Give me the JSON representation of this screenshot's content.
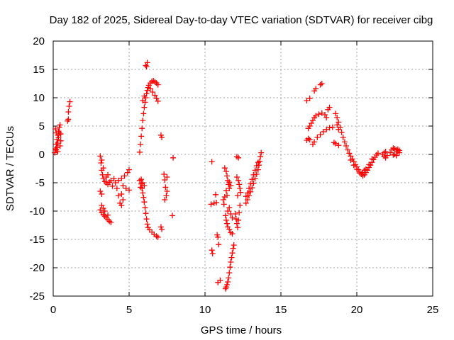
{
  "chart_data": {
    "type": "scatter",
    "title": "Day 182 of 2025, Sidereal Day-to-day VTEC variation (SDTVAR) for receiver cibg",
    "xlabel": "GPS time / hours",
    "ylabel": "SDTVAR / TECUs",
    "xlim": [
      0,
      25
    ],
    "ylim": [
      -25,
      20
    ],
    "xticks": [
      0,
      5,
      10,
      15,
      20,
      25
    ],
    "yticks": [
      20,
      15,
      10,
      5,
      0,
      -5,
      -10,
      -15,
      -20,
      -25
    ],
    "grid": true,
    "marker": "+",
    "marker_color": "#ff0000",
    "series": [
      {
        "name": "SDTVAR",
        "points": [
          [
            0.1,
            0.3
          ],
          [
            0.15,
            1.0
          ],
          [
            0.2,
            1.8
          ],
          [
            0.25,
            2.6
          ],
          [
            0.3,
            3.4
          ],
          [
            0.35,
            4.1
          ],
          [
            0.4,
            4.8
          ],
          [
            0.45,
            5.2
          ],
          [
            0.2,
            0.8
          ],
          [
            0.3,
            2.0
          ],
          [
            0.35,
            3.0
          ],
          [
            0.4,
            3.8
          ],
          [
            0.25,
            1.2
          ],
          [
            0.3,
            0.5
          ],
          [
            0.45,
            1.5
          ],
          [
            0.5,
            2.4
          ],
          [
            0.5,
            3.6
          ],
          [
            0.15,
            4.5
          ],
          [
            0.2,
            3.8
          ],
          [
            0.95,
            5.9
          ],
          [
            1.0,
            7.5
          ],
          [
            1.05,
            8.5
          ],
          [
            1.1,
            9.3
          ],
          [
            1.0,
            6.2
          ],
          [
            3.1,
            -0.3
          ],
          [
            3.15,
            -1.5
          ],
          [
            3.2,
            -2.8
          ],
          [
            3.25,
            -3.6
          ],
          [
            3.3,
            -4.3
          ],
          [
            3.4,
            -4.8
          ],
          [
            3.5,
            -5.0
          ],
          [
            3.6,
            -5.3
          ],
          [
            3.7,
            -4.9
          ],
          [
            3.8,
            -4.6
          ],
          [
            3.5,
            -4.0
          ],
          [
            3.6,
            -3.6
          ],
          [
            3.3,
            -2.4
          ],
          [
            3.2,
            -1.0
          ],
          [
            3.1,
            -6.5
          ],
          [
            3.2,
            -7.0
          ],
          [
            3.1,
            -9.8
          ],
          [
            3.2,
            -10.3
          ],
          [
            3.3,
            -10.6
          ],
          [
            3.4,
            -10.9
          ],
          [
            3.5,
            -11.2
          ],
          [
            3.6,
            -11.5
          ],
          [
            3.7,
            -11.8
          ],
          [
            3.8,
            -12.0
          ],
          [
            3.3,
            -9.5
          ],
          [
            3.4,
            -10.0
          ],
          [
            3.2,
            -9.0
          ],
          [
            3.6,
            -10.7
          ],
          [
            4.1,
            -5.0
          ],
          [
            4.3,
            -4.6
          ],
          [
            4.5,
            -4.2
          ],
          [
            4.7,
            -3.8
          ],
          [
            4.9,
            -3.2
          ],
          [
            5.0,
            -2.7
          ],
          [
            4.6,
            -5.5
          ],
          [
            4.8,
            -6.0
          ],
          [
            5.0,
            -6.3
          ],
          [
            4.5,
            -7.0
          ],
          [
            4.3,
            -7.3
          ],
          [
            4.6,
            -8.0
          ],
          [
            4.4,
            -8.6
          ],
          [
            4.0,
            -4.3
          ],
          [
            3.9,
            -5.6
          ],
          [
            4.2,
            -6.0
          ],
          [
            4.5,
            -9.0
          ],
          [
            5.7,
            -4.6
          ],
          [
            5.8,
            -5.2
          ],
          [
            5.85,
            -6.0
          ],
          [
            5.9,
            -6.8
          ],
          [
            5.95,
            -7.6
          ],
          [
            6.0,
            -8.4
          ],
          [
            6.05,
            -9.4
          ],
          [
            6.1,
            -10.4
          ],
          [
            6.15,
            -11.4
          ],
          [
            6.2,
            -12.3
          ],
          [
            6.25,
            -12.9
          ],
          [
            6.35,
            -13.3
          ],
          [
            6.5,
            -13.7
          ],
          [
            6.65,
            -14.1
          ],
          [
            6.8,
            -14.4
          ],
          [
            6.9,
            -14.6
          ],
          [
            5.8,
            -4.4
          ],
          [
            5.9,
            -5.0
          ],
          [
            6.0,
            -5.5
          ],
          [
            5.75,
            -5.8
          ],
          [
            5.7,
            0.4
          ],
          [
            5.75,
            1.8
          ],
          [
            5.8,
            3.2
          ],
          [
            5.85,
            4.6
          ],
          [
            5.9,
            6.0
          ],
          [
            5.95,
            7.2
          ],
          [
            6.0,
            8.3
          ],
          [
            6.05,
            9.2
          ],
          [
            6.1,
            10.0
          ],
          [
            6.15,
            10.7
          ],
          [
            6.2,
            11.3
          ],
          [
            6.25,
            11.8
          ],
          [
            6.3,
            12.2
          ],
          [
            6.4,
            12.6
          ],
          [
            6.5,
            12.9
          ],
          [
            6.6,
            13.0
          ],
          [
            6.7,
            12.8
          ],
          [
            6.8,
            12.6
          ],
          [
            6.9,
            12.3
          ],
          [
            6.4,
            11.6
          ],
          [
            6.55,
            11.0
          ],
          [
            6.7,
            10.4
          ],
          [
            6.8,
            9.9
          ],
          [
            6.9,
            9.4
          ],
          [
            5.9,
            9.5
          ],
          [
            6.0,
            10.3
          ],
          [
            6.1,
            15.7
          ],
          [
            6.2,
            16.2
          ],
          [
            6.15,
            15.5
          ],
          [
            7.1,
            3.4
          ],
          [
            7.15,
            3.0
          ],
          [
            7.3,
            -3.5
          ],
          [
            7.35,
            -4.5
          ],
          [
            7.4,
            -5.8
          ],
          [
            7.5,
            -6.5
          ],
          [
            7.45,
            -7.3
          ],
          [
            7.35,
            -8.0
          ],
          [
            7.5,
            -4.0
          ],
          [
            7.1,
            -12.8
          ],
          [
            7.15,
            -13.2
          ],
          [
            7.9,
            -0.6
          ],
          [
            7.85,
            -10.8
          ],
          [
            10.45,
            -1.3
          ],
          [
            10.4,
            -8.8
          ],
          [
            10.45,
            -16.9
          ],
          [
            10.5,
            -17.5
          ],
          [
            10.6,
            -8.6
          ],
          [
            10.7,
            -7.1
          ],
          [
            10.75,
            -8.5
          ],
          [
            10.8,
            -14.2
          ],
          [
            10.85,
            -14.6
          ],
          [
            10.9,
            -15.9
          ],
          [
            10.85,
            -22.6
          ],
          [
            11.0,
            -22.2
          ],
          [
            11.3,
            -2.4
          ],
          [
            11.4,
            -3.0
          ],
          [
            11.45,
            -3.8
          ],
          [
            11.5,
            -4.6
          ],
          [
            11.55,
            -5.3
          ],
          [
            11.6,
            -6.0
          ],
          [
            11.4,
            -6.4
          ],
          [
            11.45,
            -7.2
          ],
          [
            11.3,
            -7.5
          ],
          [
            11.2,
            -8.0
          ],
          [
            11.25,
            -8.8
          ],
          [
            11.6,
            -4.9
          ],
          [
            11.7,
            -5.5
          ],
          [
            11.35,
            -10.8
          ],
          [
            11.4,
            -11.6
          ],
          [
            11.45,
            -12.2
          ],
          [
            11.5,
            -12.8
          ],
          [
            11.6,
            -13.2
          ],
          [
            11.7,
            -13.8
          ],
          [
            11.8,
            -14.0
          ],
          [
            11.5,
            -10.0
          ],
          [
            11.6,
            -9.4
          ],
          [
            11.7,
            -10.5
          ],
          [
            11.8,
            -11.2
          ],
          [
            11.35,
            -23.7
          ],
          [
            11.4,
            -23.4
          ],
          [
            11.45,
            -23.0
          ],
          [
            11.5,
            -22.5
          ],
          [
            11.55,
            -21.8
          ],
          [
            11.6,
            -20.9
          ],
          [
            11.65,
            -19.9
          ],
          [
            11.7,
            -19.0
          ],
          [
            11.75,
            -18.2
          ],
          [
            11.8,
            -17.4
          ],
          [
            11.85,
            -16.6
          ],
          [
            11.9,
            -16.0
          ],
          [
            12.0,
            -10.5
          ],
          [
            12.05,
            -11.4
          ],
          [
            12.1,
            -12.2
          ],
          [
            12.15,
            -12.9
          ],
          [
            12.2,
            -11.6
          ],
          [
            12.25,
            -10.3
          ],
          [
            12.3,
            -9.0
          ],
          [
            12.1,
            -0.4
          ],
          [
            12.2,
            -0.6
          ],
          [
            12.1,
            -4.0
          ],
          [
            12.2,
            -4.6
          ],
          [
            12.25,
            -5.3
          ],
          [
            12.3,
            -6.0
          ],
          [
            12.35,
            -6.7
          ],
          [
            12.15,
            -7.3
          ],
          [
            12.7,
            -8.6
          ],
          [
            12.8,
            -8.0
          ],
          [
            12.9,
            -7.3
          ],
          [
            13.0,
            -6.6
          ],
          [
            13.1,
            -5.9
          ],
          [
            13.2,
            -5.1
          ],
          [
            13.3,
            -4.3
          ],
          [
            13.4,
            -3.5
          ],
          [
            13.5,
            -2.7
          ],
          [
            13.55,
            -1.9
          ],
          [
            13.6,
            -1.2
          ],
          [
            13.65,
            -0.4
          ],
          [
            13.7,
            0.3
          ],
          [
            12.8,
            -6.8
          ],
          [
            12.9,
            -6.0
          ],
          [
            13.0,
            -5.2
          ],
          [
            13.1,
            -4.4
          ],
          [
            13.2,
            -3.6
          ],
          [
            13.3,
            -2.8
          ],
          [
            12.7,
            -7.4
          ],
          [
            13.4,
            -2.0
          ],
          [
            13.5,
            -1.4
          ],
          [
            16.7,
            9.5
          ],
          [
            16.9,
            9.9
          ],
          [
            17.2,
            11.2
          ],
          [
            17.3,
            11.6
          ],
          [
            17.6,
            12.3
          ],
          [
            17.7,
            12.5
          ],
          [
            16.7,
            2.5
          ],
          [
            16.8,
            2.8
          ],
          [
            16.9,
            2.6
          ],
          [
            16.8,
            4.6
          ],
          [
            16.9,
            5.0
          ],
          [
            17.0,
            5.5
          ],
          [
            17.1,
            6.0
          ],
          [
            17.2,
            6.5
          ],
          [
            17.3,
            6.8
          ],
          [
            17.5,
            7.1
          ],
          [
            17.7,
            7.3
          ],
          [
            17.9,
            7.0
          ],
          [
            18.0,
            6.5
          ],
          [
            18.1,
            7.9
          ],
          [
            18.2,
            8.3
          ],
          [
            17.1,
            1.8
          ],
          [
            17.2,
            2.2
          ],
          [
            17.4,
            3.0
          ],
          [
            17.6,
            3.5
          ],
          [
            17.8,
            4.0
          ],
          [
            18.0,
            4.4
          ],
          [
            18.2,
            4.7
          ],
          [
            18.4,
            4.8
          ],
          [
            18.6,
            7.2
          ],
          [
            18.7,
            6.5
          ],
          [
            18.8,
            5.7
          ],
          [
            18.9,
            4.8
          ],
          [
            19.0,
            3.9
          ],
          [
            19.1,
            3.0
          ],
          [
            19.2,
            2.2
          ],
          [
            19.3,
            1.5
          ],
          [
            18.6,
            1.9
          ],
          [
            18.5,
            2.1
          ],
          [
            18.8,
            1.6
          ],
          [
            18.7,
            5.2
          ],
          [
            18.8,
            4.4
          ],
          [
            19.4,
            0.8
          ],
          [
            19.5,
            0.2
          ],
          [
            19.6,
            -0.3
          ],
          [
            19.7,
            -0.8
          ],
          [
            19.8,
            -1.3
          ],
          [
            19.9,
            -1.8
          ],
          [
            20.0,
            -2.2
          ],
          [
            20.1,
            -2.7
          ],
          [
            20.2,
            -3.1
          ],
          [
            20.3,
            -3.5
          ],
          [
            20.4,
            -3.8
          ],
          [
            20.5,
            -3.6
          ],
          [
            20.6,
            -3.2
          ],
          [
            20.7,
            -2.8
          ],
          [
            20.8,
            -2.3
          ],
          [
            20.9,
            -1.9
          ],
          [
            21.0,
            -1.4
          ],
          [
            21.1,
            -0.9
          ],
          [
            21.2,
            -0.5
          ],
          [
            21.3,
            -0.1
          ],
          [
            21.4,
            0.2
          ],
          [
            19.8,
            -1.9
          ],
          [
            20.0,
            -2.6
          ],
          [
            20.2,
            -3.3
          ],
          [
            20.4,
            -3.2
          ],
          [
            20.6,
            -2.6
          ],
          [
            20.8,
            -1.8
          ],
          [
            19.6,
            -1.0
          ],
          [
            20.5,
            -2.8
          ],
          [
            21.0,
            -0.8
          ],
          [
            21.7,
            0.0
          ],
          [
            21.8,
            0.3
          ],
          [
            21.9,
            0.5
          ],
          [
            21.8,
            -0.3
          ],
          [
            21.9,
            -0.6
          ],
          [
            22.0,
            -0.2
          ],
          [
            22.2,
            0.3
          ],
          [
            22.3,
            0.8
          ],
          [
            22.4,
            1.1
          ],
          [
            22.5,
            1.0
          ],
          [
            22.6,
            0.8
          ],
          [
            22.7,
            0.5
          ],
          [
            22.8,
            0.3
          ],
          [
            22.5,
            0.0
          ],
          [
            22.6,
            -0.2
          ],
          [
            22.4,
            -0.1
          ],
          [
            22.7,
            0.9
          ],
          [
            22.8,
            0.7
          ]
        ]
      }
    ]
  }
}
